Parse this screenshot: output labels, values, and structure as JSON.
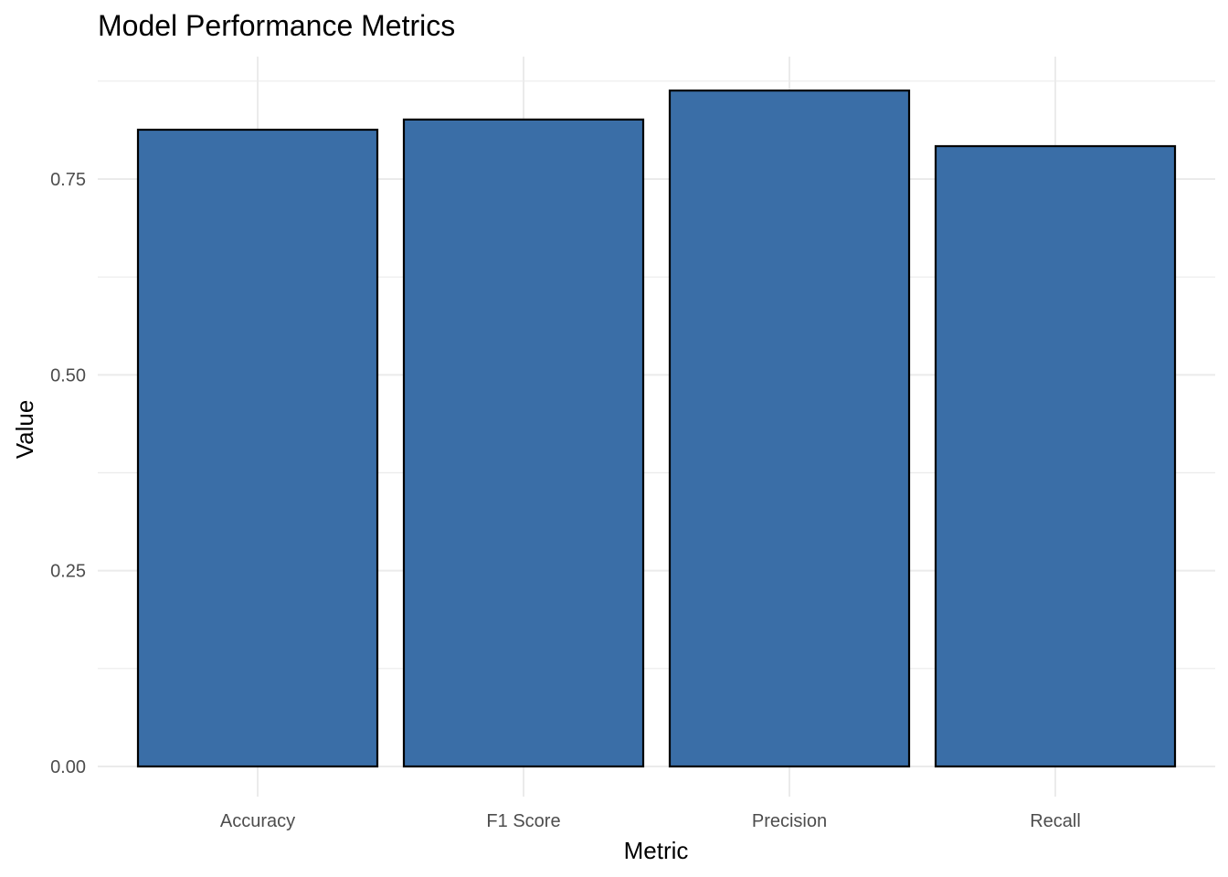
{
  "chart_data": {
    "type": "bar",
    "title": "Model Performance Metrics",
    "xlabel": "Metric",
    "ylabel": "Value",
    "categories": [
      "Accuracy",
      "F1 Score",
      "Precision",
      "Recall"
    ],
    "values": [
      0.813,
      0.826,
      0.863,
      0.792
    ],
    "ylim": [
      0,
      0.875
    ],
    "yticks": [
      0.0,
      0.25,
      0.5,
      0.75
    ],
    "ytick_labels": [
      "0.00",
      "0.25",
      "0.50",
      "0.75"
    ],
    "grid": true,
    "legend": "none",
    "colors": {
      "bar_fill": "#3A6EA7",
      "bar_outline": "#000000",
      "grid": "#EBEBEB",
      "tick_text": "#4D4D4D"
    }
  }
}
